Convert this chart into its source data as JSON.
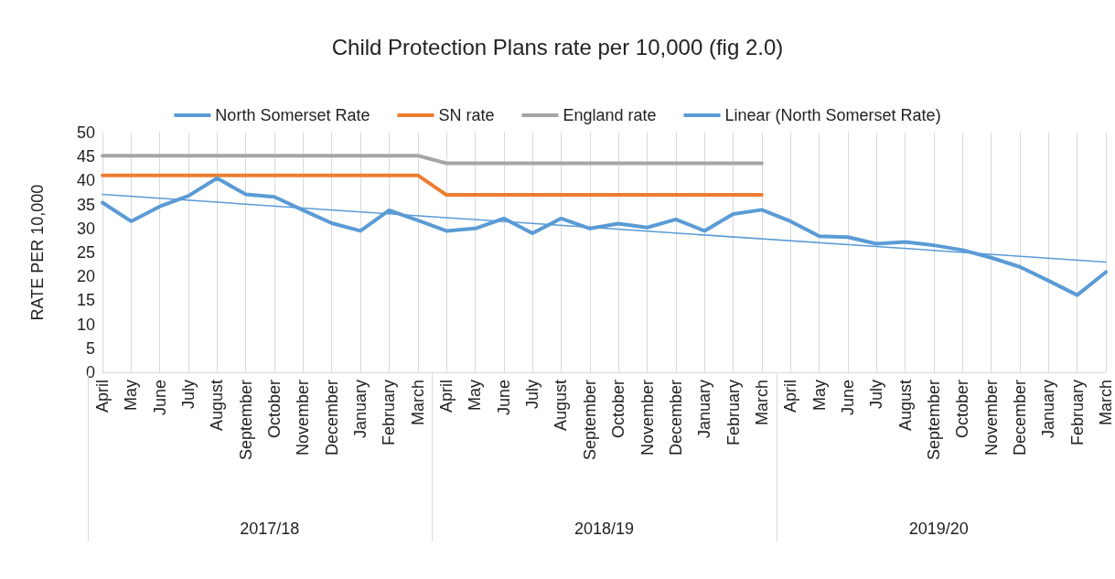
{
  "chart_data": {
    "type": "line",
    "title": "Child Protection Plans rate per 10,000 (fig 2.0)",
    "ylabel": "RATE PER 10,000",
    "categories": [
      "April",
      "May",
      "June",
      "July",
      "August",
      "September",
      "October",
      "November",
      "December",
      "January",
      "February",
      "March",
      "April",
      "May",
      "June",
      "July",
      "August",
      "September",
      "October",
      "November",
      "December",
      "January",
      "February",
      "March",
      "April",
      "May",
      "June",
      "July",
      "August",
      "September",
      "October",
      "November",
      "December",
      "January",
      "February",
      "March"
    ],
    "annotations": [
      "2017/18",
      "2018/19",
      "2019/20"
    ],
    "series": [
      {
        "name": "North Somerset Rate",
        "color": "#5b9bd5",
        "values": [
          35.4,
          31.5,
          34.6,
          36.8,
          40.5,
          37.1,
          36.6,
          33.8,
          31.1,
          29.5,
          33.8,
          31.7,
          29.5,
          30.0,
          32.1,
          29.0,
          32.1,
          30.0,
          31.0,
          30.2,
          31.9,
          29.5,
          33.0,
          33.9,
          31.5,
          28.4,
          28.2,
          26.8,
          27.2,
          26.5,
          25.5,
          23.9,
          22.0,
          19.1,
          16.1,
          20.9
        ]
      },
      {
        "name": "SN rate",
        "color": "#ed7d31",
        "values": [
          41.1,
          41.1,
          41.1,
          41.1,
          41.1,
          41.1,
          41.1,
          41.1,
          41.1,
          41.1,
          41.1,
          41.1,
          37.0,
          37.0,
          37.0,
          37.0,
          37.0,
          37.0,
          37.0,
          37.0,
          37.0,
          37.0,
          37.0,
          37.0,
          null,
          null,
          null,
          null,
          null,
          null,
          null,
          null,
          null,
          null,
          null,
          null
        ]
      },
      {
        "name": "England rate",
        "color": "#a5a5a5",
        "values": [
          45.2,
          45.2,
          45.2,
          45.2,
          45.2,
          45.2,
          45.2,
          45.2,
          45.2,
          45.2,
          45.2,
          45.2,
          43.6,
          43.6,
          43.6,
          43.6,
          43.6,
          43.6,
          43.6,
          43.6,
          43.6,
          43.6,
          43.6,
          43.6,
          null,
          null,
          null,
          null,
          null,
          null,
          null,
          null,
          null,
          null,
          null,
          null
        ]
      },
      {
        "name": "Linear (North Somerset Rate)",
        "color": "#5b9bd5",
        "line_style": "solid",
        "values": [
          37.1,
          null,
          null,
          null,
          null,
          null,
          null,
          null,
          null,
          null,
          null,
          null,
          null,
          null,
          null,
          null,
          null,
          null,
          null,
          null,
          null,
          null,
          null,
          null,
          null,
          null,
          null,
          null,
          null,
          null,
          null,
          null,
          null,
          null,
          null,
          23.0
        ]
      }
    ],
    "ylim": [
      0,
      50
    ],
    "yticks": [
      0,
      5,
      10,
      15,
      20,
      25,
      30,
      35,
      40,
      45,
      50
    ],
    "grid": "x",
    "legend": "top",
    "marker": "none"
  }
}
